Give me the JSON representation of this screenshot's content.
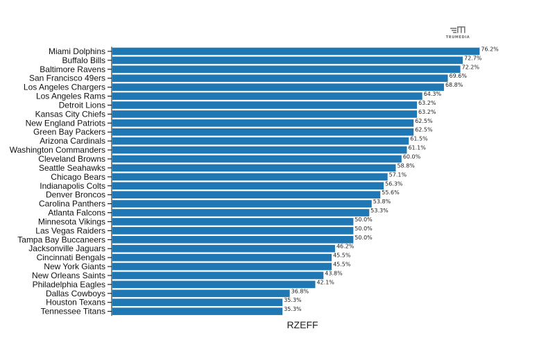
{
  "logo": {
    "text": "TRUMEDIA"
  },
  "colors": {
    "bar": "#1f77b4",
    "axis": "#000000"
  },
  "chart_data": {
    "type": "bar",
    "orientation": "horizontal",
    "title": "",
    "xlabel": "RZEFF",
    "ylabel": "",
    "xlim": [
      0,
      80
    ],
    "grid": false,
    "value_format": "percent",
    "categories": [
      "Miami Dolphins",
      "Buffalo Bills",
      "Baltimore Ravens",
      "San Francisco 49ers",
      "Los Angeles Chargers",
      "Los Angeles Rams",
      "Detroit Lions",
      "Kansas City Chiefs",
      "New England Patriots",
      "Green Bay Packers",
      "Arizona Cardinals",
      "Washington Commanders",
      "Cleveland Browns",
      "Seattle Seahawks",
      "Chicago Bears",
      "Indianapolis Colts",
      "Denver Broncos",
      "Carolina Panthers",
      "Atlanta Falcons",
      "Minnesota Vikings",
      "Las Vegas Raiders",
      "Tampa Bay Buccaneers",
      "Jacksonville Jaguars",
      "Cincinnati Bengals",
      "New York Giants",
      "New Orleans Saints",
      "Philadelphia Eagles",
      "Dallas Cowboys",
      "Houston Texans",
      "Tennessee Titans"
    ],
    "values": [
      76.2,
      72.7,
      72.2,
      69.6,
      68.8,
      64.3,
      63.2,
      63.2,
      62.5,
      62.5,
      61.5,
      61.1,
      60.0,
      58.8,
      57.1,
      56.3,
      55.6,
      53.8,
      53.3,
      50.0,
      50.0,
      50.0,
      46.2,
      45.5,
      45.5,
      43.8,
      42.1,
      36.8,
      35.3,
      35.3
    ],
    "data_labels": [
      "76.2%",
      "72.7%",
      "72.2%",
      "69.6%",
      "68.8%",
      "64.3%",
      "63.2%",
      "63.2%",
      "62.5%",
      "62.5%",
      "61.5%",
      "61.1%",
      "60.0%",
      "58.8%",
      "57.1%",
      "56.3%",
      "55.6%",
      "53.8%",
      "53.3%",
      "50.0%",
      "50.0%",
      "50.0%",
      "46.2%",
      "45.5%",
      "45.5%",
      "43.8%",
      "42.1%",
      "36.8%",
      "35.3%",
      "35.3%"
    ]
  }
}
